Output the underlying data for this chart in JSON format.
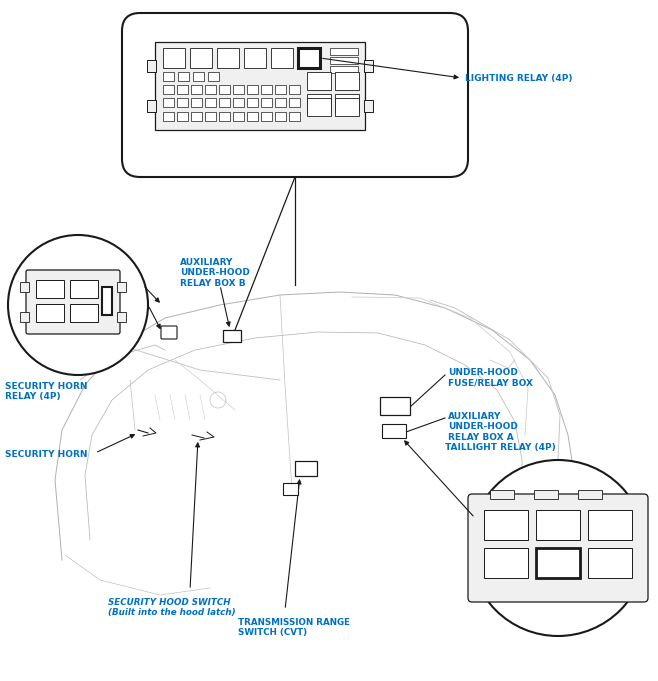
{
  "bg_color": "#ffffff",
  "label_color": "#0070C0",
  "line_color": "#1a1a1a",
  "car_color": "#cccccc",
  "labels": {
    "lighting_relay": "LIGHTING RELAY (4P)",
    "aux_relay_b": "AUXILIARY\nUNDER-HOOD\nRELAY BOX B",
    "security_horn_relay": "SECURITY HORN\nRELAY (4P)",
    "under_hood_fuse": "UNDER-HOOD\nFUSE/RELAY BOX",
    "aux_relay_a": "AUXILIARY\nUNDER-HOOD\nRELAY BOX A",
    "taillight_relay": "TAILLIGHT RELAY (4P)",
    "security_horn": "SECURITY HORN",
    "security_hood_switch": "SECURITY HOOD SWITCH\n(Built into the hood latch)",
    "transmission_range": "TRANSMISSION RANGE\nSWITCH (CVT)"
  }
}
